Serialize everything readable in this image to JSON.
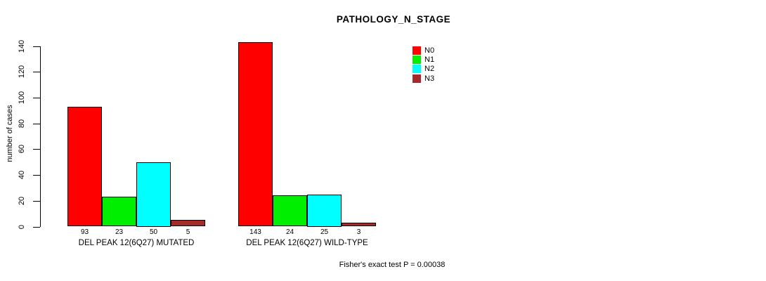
{
  "chart_data": {
    "type": "bar",
    "title": "PATHOLOGY_N_STAGE",
    "xlabel": "",
    "ylabel": "number of cases",
    "ylim": [
      0,
      140
    ],
    "yticks": [
      0,
      20,
      40,
      60,
      80,
      100,
      120,
      140
    ],
    "grid": false,
    "legend_position": "top-right",
    "categories": [
      "DEL PEAK 12(6Q27) MUTATED",
      "DEL PEAK 12(6Q27) WILD-TYPE"
    ],
    "series": [
      {
        "name": "N0",
        "color": "#ff0000",
        "values": [
          93,
          143
        ]
      },
      {
        "name": "N1",
        "color": "#00ee00",
        "values": [
          23,
          24
        ]
      },
      {
        "name": "N2",
        "color": "#00ffff",
        "values": [
          50,
          25
        ]
      },
      {
        "name": "N3",
        "color": "#a52a2a",
        "values": [
          5,
          3
        ]
      }
    ],
    "bar_value_labels": [
      [
        "93",
        "23",
        "50",
        "5"
      ],
      [
        "143",
        "24",
        "25",
        "3"
      ]
    ],
    "annotation": "Fisher's exact test P = 0.00038",
    "text_color": "#000000",
    "bar_border_color": "#000000"
  }
}
